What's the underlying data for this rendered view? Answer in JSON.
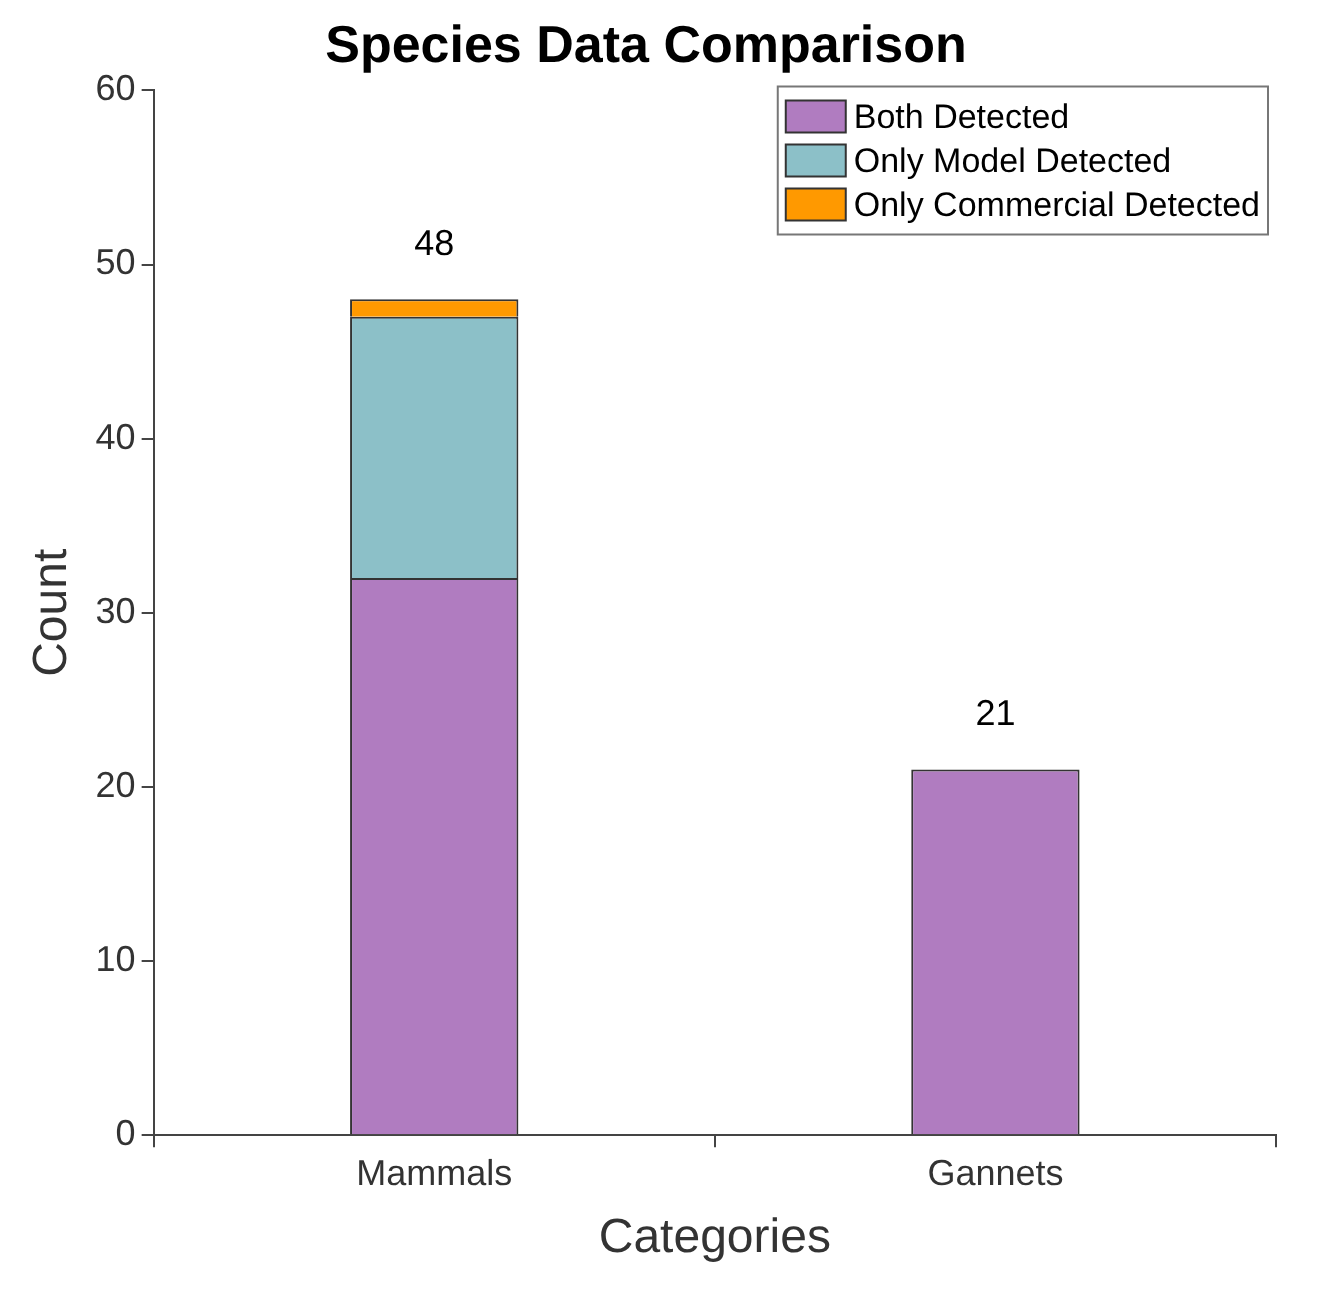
{
  "chart_data": {
    "type": "bar",
    "title": "Species Data Comparison",
    "xlabel": "Categories",
    "ylabel": "Count",
    "categories": [
      "Mammals",
      "Gannets"
    ],
    "series": [
      {
        "name": "Both Detected",
        "color": "#b07cc0",
        "values": [
          32,
          21
        ]
      },
      {
        "name": "Only Model Detected",
        "color": "#8cc0c8",
        "values": [
          15,
          0
        ]
      },
      {
        "name": "Only Commercial Detected",
        "color": "#ff9900",
        "values": [
          1,
          0
        ]
      }
    ],
    "stacked": true,
    "totals": [
      "48",
      "21"
    ],
    "ylim": [
      0,
      60
    ],
    "yticks": [
      0,
      10,
      20,
      30,
      40,
      50,
      60
    ],
    "grid": false,
    "legend": "top right"
  }
}
